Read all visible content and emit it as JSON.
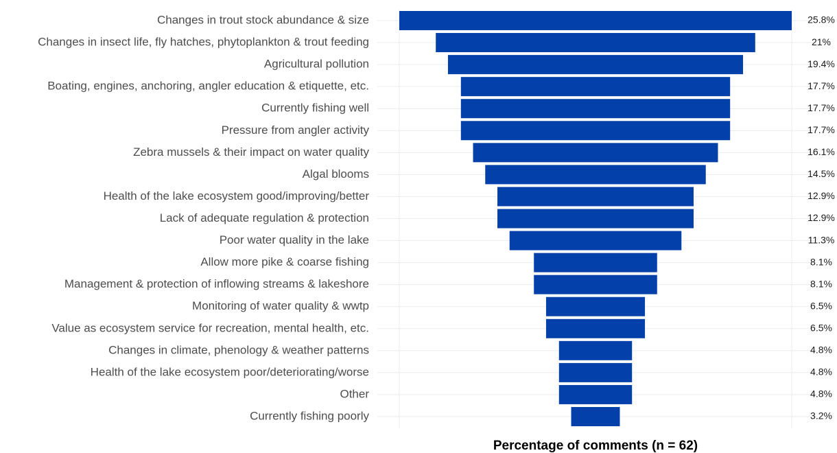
{
  "chart_data": {
    "type": "funnel",
    "x_label": "Percentage of comments (n = 62)",
    "categories": [
      "Changes in trout stock abundance & size",
      "Changes in insect life, fly hatches, phytoplankton & trout feeding",
      "Agricultural pollution",
      "Boating, engines, anchoring, angler education & etiquette, etc.",
      "Currently fishing well",
      "Pressure from angler activity",
      "Zebra mussels & their impact on water quality",
      "Algal blooms",
      "Health of the lake ecosystem good/improving/better",
      "Lack of adequate regulation & protection",
      "Poor water quality in the lake",
      "Allow more pike & coarse fishing",
      "Management & protection of inflowing streams & lakeshore",
      "Monitoring of water quality & wwtp",
      "Value as ecosystem service for recreation, mental health, etc.",
      "Changes in climate, phenology & weather patterns",
      "Health of the lake ecosystem poor/deteriorating/worse",
      "Other",
      "Currently fishing poorly"
    ],
    "values": [
      25.8,
      21,
      19.4,
      17.7,
      17.7,
      17.7,
      16.1,
      14.5,
      12.9,
      12.9,
      11.3,
      8.1,
      8.1,
      6.5,
      6.5,
      4.8,
      4.8,
      4.8,
      3.2
    ],
    "value_labels": [
      "25.8%",
      "21%",
      "19.4%",
      "17.7%",
      "17.7%",
      "17.7%",
      "16.1%",
      "14.5%",
      "12.9%",
      "12.9%",
      "11.3%",
      "8.1%",
      "8.1%",
      "6.5%",
      "6.5%",
      "4.8%",
      "4.8%",
      "4.8%",
      "3.2%"
    ],
    "color": "#0340a9",
    "grid": true
  }
}
